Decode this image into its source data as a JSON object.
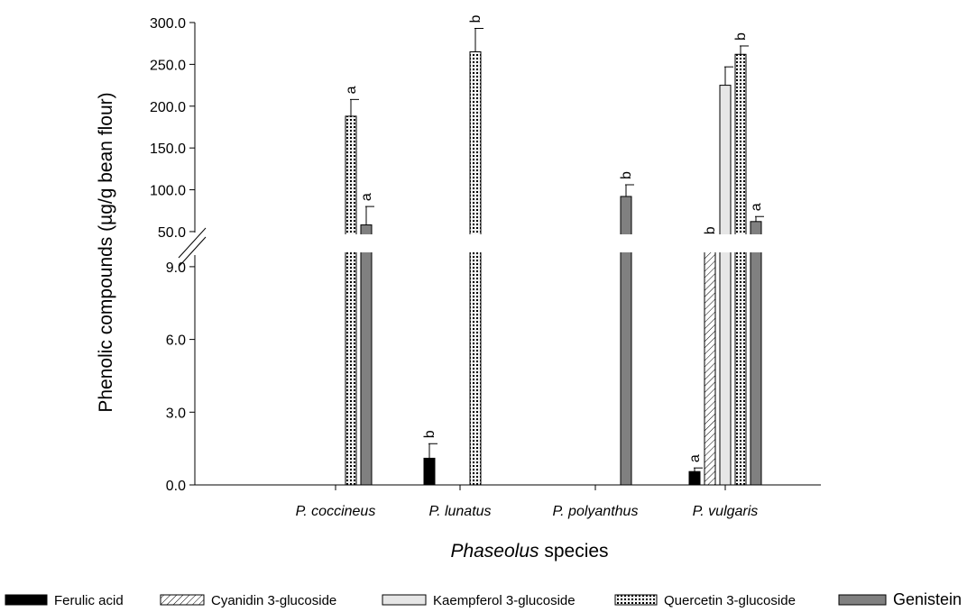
{
  "chart_data": {
    "type": "bar",
    "xlabel_italic": "Phaseolus",
    "xlabel_rest": " species",
    "ylabel": "Phenolic compounds (µg/g bean flour)",
    "categories": [
      "P. coccineus",
      "P. lunatus",
      "P. polyanthus",
      "P. vulgaris"
    ],
    "y_axis_break": true,
    "ylim_lower": [
      0,
      10
    ],
    "ylim_upper": [
      37,
      300
    ],
    "yticks_lower": [
      "0.0",
      "3.0",
      "6.0",
      "9.0"
    ],
    "yticks_upper": [
      "50.0",
      "100.0",
      "150.0",
      "200.0",
      "250.0",
      "300.0"
    ],
    "series": [
      {
        "name": "Ferulic acid",
        "pattern": "solid-black",
        "color": "#000000",
        "values": [
          null,
          1.1,
          null,
          0.55
        ],
        "errors": [
          null,
          0.6,
          null,
          0.15
        ],
        "labels": [
          null,
          "b",
          null,
          "a"
        ]
      },
      {
        "name": "Cyanidin 3-glucoside",
        "pattern": "hatch",
        "color": "#ffffff",
        "values": [
          null,
          null,
          null,
          35
        ],
        "errors": [
          null,
          null,
          null,
          5
        ],
        "labels": [
          null,
          null,
          null,
          "b"
        ]
      },
      {
        "name": "Kaempferol 3-glucoside",
        "pattern": "light-gray",
        "color": "#e6e6e6",
        "values": [
          null,
          null,
          null,
          225
        ],
        "errors": [
          null,
          null,
          null,
          22
        ],
        "labels": [
          null,
          null,
          null,
          null
        ]
      },
      {
        "name": "Quercetin 3-glucoside",
        "pattern": "dotted",
        "color": "#f0f0f0",
        "values": [
          188,
          265,
          null,
          262
        ],
        "errors": [
          20,
          28,
          null,
          10
        ],
        "labels": [
          "a",
          "b",
          null,
          "b"
        ]
      },
      {
        "name": "Genistein",
        "pattern": "dark-gray",
        "color": "#808080",
        "values": [
          58,
          null,
          92,
          62
        ],
        "errors": [
          22,
          null,
          14,
          6
        ],
        "labels": [
          "a",
          null,
          "b",
          "a"
        ]
      }
    ]
  }
}
